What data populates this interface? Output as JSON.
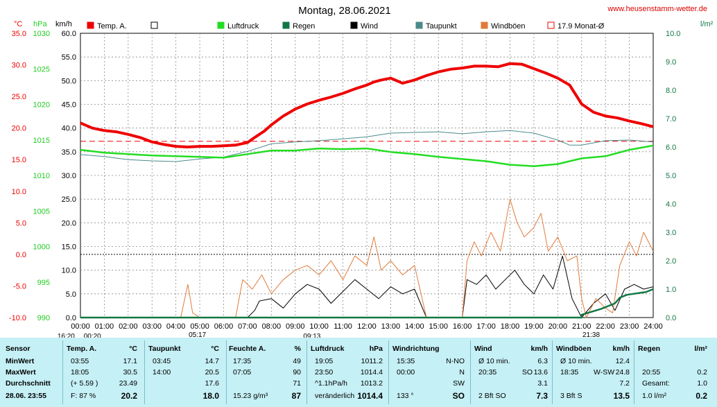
{
  "header": {
    "date": "Montag, 28.06.2021",
    "site": "www.heusenstamm-wetter.de"
  },
  "units": {
    "temp": "°C",
    "pressure": "hPa",
    "wind": "km/h",
    "rain": "l/m²"
  },
  "legend": [
    {
      "label": "Temp. A.",
      "color": "#ee0000",
      "style": "filled"
    },
    {
      "label": "",
      "color": "#000000",
      "style": "open"
    },
    {
      "label": "Luftdruck",
      "color": "#22dd22",
      "style": "filled"
    },
    {
      "label": "Regen",
      "color": "#117744",
      "style": "filled"
    },
    {
      "label": "Wind",
      "color": "#000000",
      "style": "filled"
    },
    {
      "label": "Taupunkt",
      "color": "#4a8a8a",
      "style": "filled"
    },
    {
      "label": "Windböen",
      "color": "#e07a3a",
      "style": "filled"
    },
    {
      "label": "17.9 Monat-Ø",
      "color": "#ee0000",
      "style": "open"
    }
  ],
  "axis_labels": {
    "temp_ticks": [
      "35.0",
      "30.0",
      "25.0",
      "20.0",
      "15.0",
      "10.0",
      "5.0",
      "0.0",
      "-5.0",
      "-10.0"
    ],
    "pressure_ticks": [
      "1030",
      "1025",
      "1020",
      "1015",
      "1010",
      "1005",
      "1000",
      "995",
      "990"
    ],
    "wind_ticks": [
      "60.0",
      "55.0",
      "50.0",
      "45.0",
      "40.0",
      "35.0",
      "30.0",
      "25.0",
      "20.0",
      "15.0",
      "10.0",
      "5.0",
      "0.0"
    ],
    "rain_ticks": [
      "10.0",
      "9.0",
      "8.0",
      "7.0",
      "6.0",
      "5.0",
      "4.0",
      "3.0",
      "2.0",
      "1.0",
      "0.0"
    ],
    "x_ticks": [
      "00:00",
      "01:00",
      "02:00",
      "03:00",
      "04:00",
      "05:00",
      "06:00",
      "07:00",
      "08:00",
      "09:00",
      "10:00",
      "11:00",
      "12:00",
      "13:00",
      "14:00",
      "15:00",
      "16:00",
      "17:00",
      "18:00",
      "19:00",
      "20:00",
      "21:00",
      "22:00",
      "23:00",
      "24:00"
    ],
    "x_markers": [
      {
        "text": "16:20",
        "row": "bottom",
        "at": -0.6
      },
      {
        "text": "00:20",
        "row": "bottom",
        "at": 0.5
      },
      {
        "text": "05:17",
        "row": "top",
        "at": 4.9
      },
      {
        "text": "09:13",
        "row": "bottom",
        "at": 9.7
      },
      {
        "text": "21:38",
        "row": "top",
        "at": 21.4
      }
    ]
  },
  "chart_data": {
    "type": "line",
    "x_range": [
      0,
      24
    ],
    "ylim_temp": [
      -10,
      35
    ],
    "ylim_pressure": [
      990,
      1030
    ],
    "ylim_wind": [
      0,
      60
    ],
    "ylim_rain": [
      0,
      10
    ],
    "reference_lines": [
      {
        "name": "17.9 Monat-Ø",
        "axis": "temp",
        "value": 17.9,
        "color": "#ee0000"
      },
      {
        "axis": "temp",
        "value": 0,
        "color": "#000000"
      }
    ],
    "series": [
      {
        "name": "Temp. A.",
        "axis": "temp",
        "color": "#ee0000",
        "width": 4,
        "points": [
          [
            0,
            20.8
          ],
          [
            0.5,
            20.0
          ],
          [
            1,
            19.6
          ],
          [
            1.5,
            19.4
          ],
          [
            2,
            19.0
          ],
          [
            2.5,
            18.5
          ],
          [
            3,
            17.8
          ],
          [
            3.5,
            17.4
          ],
          [
            4,
            17.1
          ],
          [
            4.5,
            17.0
          ],
          [
            5,
            17.1
          ],
          [
            5.5,
            17.1
          ],
          [
            6,
            17.2
          ],
          [
            6.5,
            17.3
          ],
          [
            7,
            17.7
          ],
          [
            7.3,
            18.5
          ],
          [
            7.7,
            19.5
          ],
          [
            8,
            20.5
          ],
          [
            8.5,
            21.9
          ],
          [
            9,
            23.0
          ],
          [
            9.5,
            23.8
          ],
          [
            10,
            24.4
          ],
          [
            10.5,
            24.9
          ],
          [
            11,
            25.5
          ],
          [
            11.5,
            26.2
          ],
          [
            12,
            26.8
          ],
          [
            12.3,
            27.3
          ],
          [
            12.6,
            27.6
          ],
          [
            13,
            27.9
          ],
          [
            13.5,
            27.1
          ],
          [
            14,
            27.6
          ],
          [
            14.5,
            28.3
          ],
          [
            15,
            28.9
          ],
          [
            15.5,
            29.3
          ],
          [
            16,
            29.5
          ],
          [
            16.5,
            29.8
          ],
          [
            17,
            29.8
          ],
          [
            17.5,
            29.7
          ],
          [
            18,
            30.2
          ],
          [
            18.5,
            30.1
          ],
          [
            19,
            29.4
          ],
          [
            19.5,
            28.7
          ],
          [
            20,
            27.9
          ],
          [
            20.5,
            26.8
          ],
          [
            21,
            23.8
          ],
          [
            21.5,
            22.5
          ],
          [
            22,
            21.9
          ],
          [
            22.5,
            21.6
          ],
          [
            23,
            21.1
          ],
          [
            23.5,
            20.7
          ],
          [
            24,
            20.2
          ]
        ]
      },
      {
        "name": "Taupunkt",
        "axis": "temp",
        "color": "#4a8a8a",
        "width": 1,
        "points": [
          [
            0,
            15.8
          ],
          [
            1,
            15.5
          ],
          [
            2,
            15.0
          ],
          [
            3,
            14.8
          ],
          [
            4,
            14.7
          ],
          [
            5,
            15.1
          ],
          [
            6,
            15.4
          ],
          [
            7,
            16.3
          ],
          [
            8,
            17.5
          ],
          [
            9,
            17.8
          ],
          [
            10,
            18.0
          ],
          [
            11,
            18.3
          ],
          [
            12,
            18.6
          ],
          [
            13,
            19.2
          ],
          [
            14,
            19.3
          ],
          [
            15,
            19.4
          ],
          [
            16,
            19.1
          ],
          [
            17,
            19.4
          ],
          [
            18,
            19.6
          ],
          [
            19,
            19.2
          ],
          [
            20,
            18.1
          ],
          [
            20.5,
            17.3
          ],
          [
            21,
            17.3
          ],
          [
            22,
            18.0
          ],
          [
            23,
            18.1
          ],
          [
            24,
            17.8
          ]
        ]
      },
      {
        "name": "Luftdruck",
        "axis": "pressure",
        "color": "#22dd22",
        "width": 2.5,
        "points": [
          [
            0,
            1013.6
          ],
          [
            1,
            1013.2
          ],
          [
            2,
            1013.0
          ],
          [
            3,
            1012.8
          ],
          [
            4,
            1012.7
          ],
          [
            5,
            1012.6
          ],
          [
            6,
            1012.5
          ],
          [
            7,
            1013.0
          ],
          [
            8,
            1013.5
          ],
          [
            9,
            1013.5
          ],
          [
            10,
            1013.8
          ],
          [
            11,
            1013.7
          ],
          [
            12,
            1013.8
          ],
          [
            13,
            1013.3
          ],
          [
            14,
            1013.0
          ],
          [
            15,
            1012.6
          ],
          [
            16,
            1012.3
          ],
          [
            17,
            1012.0
          ],
          [
            18,
            1011.5
          ],
          [
            19,
            1011.3
          ],
          [
            20,
            1011.6
          ],
          [
            21,
            1012.4
          ],
          [
            22,
            1012.7
          ],
          [
            23,
            1013.6
          ],
          [
            24,
            1014.2
          ]
        ]
      },
      {
        "name": "Wind",
        "axis": "wind",
        "color": "#000000",
        "width": 1,
        "points": [
          [
            0,
            0
          ],
          [
            7,
            0
          ],
          [
            7.3,
            1.5
          ],
          [
            7.5,
            3.5
          ],
          [
            8,
            4
          ],
          [
            8.5,
            2
          ],
          [
            9,
            5
          ],
          [
            9.5,
            7
          ],
          [
            10,
            6
          ],
          [
            10.5,
            3
          ],
          [
            11,
            5.5
          ],
          [
            11.5,
            8
          ],
          [
            12,
            6
          ],
          [
            12.5,
            4
          ],
          [
            13,
            6.5
          ],
          [
            13.5,
            5
          ],
          [
            14,
            6
          ],
          [
            14.5,
            0
          ],
          [
            16,
            0
          ],
          [
            16.2,
            8
          ],
          [
            16.6,
            7
          ],
          [
            17,
            9
          ],
          [
            17.4,
            6
          ],
          [
            17.8,
            8
          ],
          [
            18.2,
            10
          ],
          [
            18.6,
            7
          ],
          [
            19,
            5
          ],
          [
            19.4,
            9
          ],
          [
            19.8,
            6
          ],
          [
            20.2,
            13
          ],
          [
            20.6,
            4
          ],
          [
            21,
            0
          ],
          [
            21.5,
            3
          ],
          [
            22,
            5
          ],
          [
            22.4,
            1.5
          ],
          [
            22.8,
            6
          ],
          [
            23.2,
            7
          ],
          [
            23.6,
            6
          ],
          [
            24,
            6.5
          ]
        ]
      },
      {
        "name": "Windböen",
        "axis": "wind",
        "color": "#e07a3a",
        "width": 1,
        "points": [
          [
            0,
            0
          ],
          [
            4.2,
            0
          ],
          [
            4.5,
            7
          ],
          [
            4.7,
            1
          ],
          [
            5,
            0
          ],
          [
            6.5,
            0
          ],
          [
            6.8,
            8
          ],
          [
            7.2,
            6
          ],
          [
            7.6,
            9
          ],
          [
            8,
            5
          ],
          [
            8.5,
            8
          ],
          [
            9,
            10
          ],
          [
            9.5,
            11
          ],
          [
            10,
            9
          ],
          [
            10.5,
            12
          ],
          [
            11,
            8
          ],
          [
            11.5,
            13
          ],
          [
            12,
            11
          ],
          [
            12.3,
            17
          ],
          [
            12.6,
            10
          ],
          [
            13,
            12
          ],
          [
            13.5,
            9
          ],
          [
            14,
            11
          ],
          [
            14.5,
            0
          ],
          [
            16,
            0
          ],
          [
            16.2,
            12
          ],
          [
            16.5,
            16
          ],
          [
            16.8,
            13
          ],
          [
            17.2,
            18
          ],
          [
            17.6,
            14
          ],
          [
            18,
            25
          ],
          [
            18.3,
            20
          ],
          [
            18.6,
            17
          ],
          [
            19,
            19
          ],
          [
            19.3,
            22
          ],
          [
            19.6,
            14
          ],
          [
            20,
            17
          ],
          [
            20.4,
            12
          ],
          [
            20.8,
            13
          ],
          [
            21,
            4
          ],
          [
            21.2,
            0
          ],
          [
            21.6,
            4
          ],
          [
            22,
            2
          ],
          [
            22.3,
            1
          ],
          [
            22.6,
            11
          ],
          [
            23,
            16
          ],
          [
            23.3,
            13
          ],
          [
            23.6,
            18
          ],
          [
            24,
            14
          ]
        ]
      },
      {
        "name": "Regen",
        "axis": "rain",
        "color": "#117744",
        "width": 2.5,
        "points": [
          [
            0,
            0
          ],
          [
            21,
            0
          ],
          [
            21,
            0.1
          ],
          [
            21.4,
            0.2
          ],
          [
            21.8,
            0.3
          ],
          [
            22.4,
            0.5
          ],
          [
            22.6,
            0.7
          ],
          [
            22.9,
            0.8
          ],
          [
            23.7,
            0.9
          ],
          [
            24,
            1.0
          ]
        ]
      }
    ]
  },
  "table": {
    "headers": {
      "sensor": "Sensor",
      "temp": {
        "label": "Temp. A.",
        "unit": "°C"
      },
      "dew": {
        "label": "Taupunkt",
        "unit": "°C"
      },
      "hum": {
        "label": "Feuchte A.",
        "unit": "%"
      },
      "press": {
        "label": "Luftdruck",
        "unit": "hPa"
      },
      "dir": {
        "label": "Windrichtung"
      },
      "wind": {
        "label": "Wind",
        "unit": "km/h"
      },
      "gust": {
        "label": "Windböen",
        "unit": "km/h"
      },
      "rain": {
        "label": "Regen",
        "unit": "l/m²"
      }
    },
    "rows": [
      {
        "label": "MinWert",
        "temp_t": "03:55",
        "temp_v": "17.1",
        "dew_t": "03:45",
        "dew_v": "14.7",
        "hum_t": "17:35",
        "hum_v": "49",
        "press_t": "19:05",
        "press_v": "1011.2",
        "dir_t": "15:35",
        "dir_v": "N-NO",
        "wind_t": "Ø 10 min.",
        "wind_v": "6.3",
        "gust_t": "Ø 10 min.",
        "gust_v": "12.4",
        "rain_t": "",
        "rain_v": ""
      },
      {
        "label": "MaxWert",
        "temp_t": "18:05",
        "temp_v": "30.5",
        "dew_t": "14:00",
        "dew_v": "20.5",
        "hum_t": "07:05",
        "hum_v": "90",
        "press_t": "23:50",
        "press_v": "1014.4",
        "dir_t": "00:00",
        "dir_v": "N",
        "wind_t": "20:35",
        "wind_m": "SO",
        "wind_v": "13.6",
        "gust_t": "18:35",
        "gust_m": "W-SW",
        "gust_v": "24.8",
        "rain_t": "20:55",
        "rain_v": "0.2"
      },
      {
        "label": "Durchschnitt",
        "temp_t": "(+ 5.59 )",
        "temp_v": "23.49",
        "dew_t": "",
        "dew_v": "17.6",
        "hum_t": "",
        "hum_v": "71",
        "press_t": "^1.1hPa/h",
        "press_v": "1013.2",
        "dir_t": "",
        "dir_v": "SW",
        "wind_t": "",
        "wind_v": "3.1",
        "gust_t": "",
        "gust_v": "7.2",
        "rain_t": "Gesamt:",
        "rain_v": "1.0"
      }
    ],
    "current": {
      "label": "28.06. 23:55",
      "temp_t": "F: 87 %",
      "temp_v": "20.2",
      "dew_v": "18.0",
      "hum_t": "15.23 g/m³",
      "hum_v": "87",
      "press_t": "veränderlich",
      "press_v": "1014.4",
      "dir_t": "133 °",
      "dir_v": "SO",
      "wind_t": "2 Bft SO",
      "wind_v": "7.3",
      "gust_t": "3 Bft S",
      "gust_v": "13.5",
      "rain_t": "1.0 l/m²",
      "rain_v": "0.2"
    }
  }
}
